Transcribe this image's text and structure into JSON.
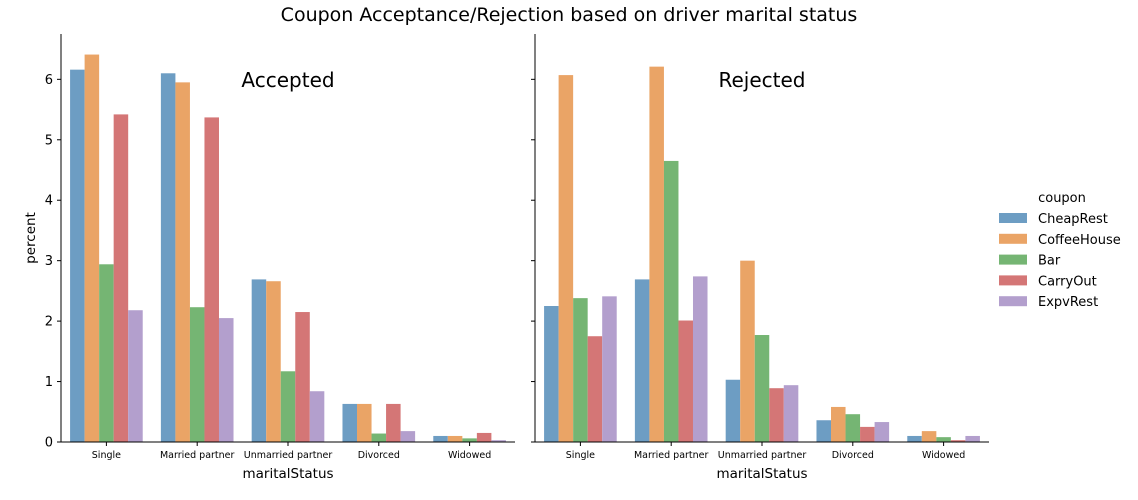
{
  "chart_data": {
    "type": "bar",
    "title": "Coupon Acceptance/Rejection based on driver marital status",
    "xlabel": "maritalStatus",
    "ylabel": "percent",
    "ylim": [
      0,
      6.75
    ],
    "yticks": [
      0,
      1,
      2,
      3,
      4,
      5,
      6
    ],
    "categories": [
      "Single",
      "Married partner",
      "Unmarried partner",
      "Divorced",
      "Widowed"
    ],
    "legend": {
      "title": "coupon",
      "placement": "right"
    },
    "series_colors": {
      "CheapRest": "#6d9dc3",
      "CoffeeHouse": "#eaa466",
      "Bar": "#75b573",
      "CarryOut": "#d47676",
      "ExpvRest": "#b39fcd"
    },
    "panels": [
      {
        "label": "Accepted",
        "series": [
          {
            "name": "CheapRest",
            "values": [
              6.16,
              6.1,
              2.69,
              0.63,
              0.1
            ]
          },
          {
            "name": "CoffeeHouse",
            "values": [
              6.41,
              5.95,
              2.66,
              0.63,
              0.1
            ]
          },
          {
            "name": "Bar",
            "values": [
              2.94,
              2.23,
              1.17,
              0.14,
              0.06
            ]
          },
          {
            "name": "CarryOut",
            "values": [
              5.42,
              5.37,
              2.15,
              0.63,
              0.15
            ]
          },
          {
            "name": "ExpvRest",
            "values": [
              2.18,
              2.05,
              0.84,
              0.18,
              0.03
            ]
          }
        ]
      },
      {
        "label": "Rejected",
        "series": [
          {
            "name": "CheapRest",
            "values": [
              2.25,
              2.69,
              1.03,
              0.36,
              0.1
            ]
          },
          {
            "name": "CoffeeHouse",
            "values": [
              6.07,
              6.21,
              3.0,
              0.58,
              0.18
            ]
          },
          {
            "name": "Bar",
            "values": [
              2.38,
              4.65,
              1.77,
              0.46,
              0.08
            ]
          },
          {
            "name": "CarryOut",
            "values": [
              1.75,
              2.01,
              0.89,
              0.25,
              0.03
            ]
          },
          {
            "name": "ExpvRest",
            "values": [
              2.41,
              2.74,
              0.94,
              0.33,
              0.1
            ]
          }
        ]
      }
    ]
  }
}
